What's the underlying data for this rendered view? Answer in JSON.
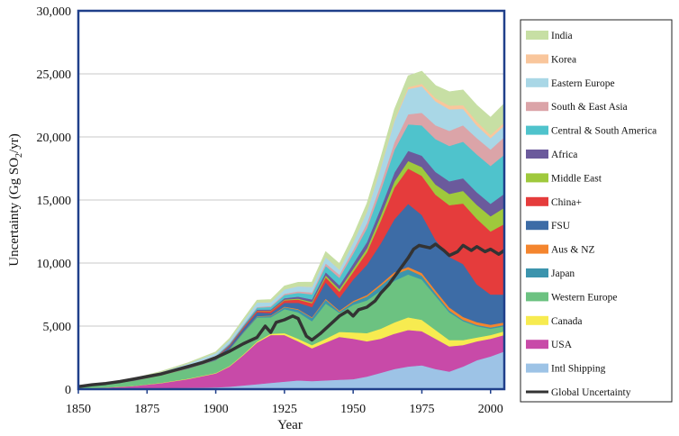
{
  "chart_data": {
    "type": "area",
    "stacked": true,
    "title": "",
    "xlabel": "Year",
    "ylabel": "Uncertainty (Gg SO",
    "ylabel_sub": "2",
    "ylabel_tail": "/yr)",
    "xlim": [
      1850,
      2005
    ],
    "ylim": [
      0,
      30000
    ],
    "xticks": [
      1850,
      1875,
      1900,
      1925,
      1950,
      1975,
      2000
    ],
    "xtick_labels": [
      "1850",
      "1875",
      "1900",
      "1925",
      "1950",
      "1975",
      "2000"
    ],
    "yticks": [
      0,
      5000,
      10000,
      15000,
      20000,
      25000,
      30000
    ],
    "ytick_labels": [
      "0",
      "5,000",
      "10,000",
      "15,000",
      "20,000",
      "25,000",
      "30,000"
    ],
    "grid": "horizontal",
    "legend_position": "right",
    "x": [
      1850,
      1860,
      1870,
      1880,
      1890,
      1900,
      1905,
      1910,
      1915,
      1920,
      1925,
      1930,
      1935,
      1940,
      1945,
      1950,
      1955,
      1960,
      1965,
      1970,
      1975,
      1980,
      1985,
      1990,
      1995,
      2000,
      2005
    ],
    "series": [
      {
        "name": "Intl Shipping",
        "color": "#9dc3e6",
        "values": [
          20,
          30,
          50,
          80,
          110,
          150,
          200,
          300,
          400,
          500,
          600,
          700,
          650,
          700,
          750,
          800,
          1000,
          1300,
          1600,
          1800,
          1900,
          1600,
          1400,
          1800,
          2300,
          2600,
          3000
        ]
      },
      {
        "name": "USA",
        "color": "#c84aa8",
        "values": [
          50,
          100,
          200,
          400,
          700,
          1100,
          1600,
          2400,
          3300,
          3800,
          3700,
          3100,
          2600,
          3000,
          3400,
          3200,
          2800,
          2700,
          2800,
          2900,
          2700,
          2400,
          2000,
          1700,
          1500,
          1400,
          1300
        ]
      },
      {
        "name": "Canada",
        "color": "#f7eb50",
        "values": [
          5,
          10,
          15,
          20,
          30,
          40,
          50,
          60,
          80,
          100,
          150,
          200,
          250,
          300,
          400,
          500,
          650,
          800,
          900,
          1000,
          900,
          700,
          500,
          400,
          300,
          300,
          300
        ]
      },
      {
        "name": "Western Europe",
        "color": "#6cc281",
        "values": [
          150,
          250,
          400,
          600,
          800,
          1000,
          1300,
          1700,
          1900,
          1300,
          1900,
          2100,
          1900,
          2800,
          1500,
          2200,
          2600,
          3000,
          3300,
          3400,
          3200,
          2700,
          2200,
          1500,
          900,
          500,
          400
        ]
      },
      {
        "name": "Japan",
        "color": "#3c94ad",
        "values": [
          0,
          0,
          0,
          5,
          10,
          20,
          30,
          50,
          80,
          100,
          150,
          200,
          250,
          300,
          100,
          200,
          300,
          400,
          500,
          400,
          300,
          200,
          150,
          100,
          100,
          100,
          100
        ]
      },
      {
        "name": "Aus & NZ",
        "color": "#f4852e",
        "values": [
          0,
          0,
          5,
          10,
          15,
          20,
          25,
          30,
          35,
          40,
          50,
          60,
          70,
          80,
          90,
          100,
          120,
          150,
          180,
          200,
          220,
          230,
          240,
          230,
          220,
          210,
          200
        ]
      },
      {
        "name": "FSU",
        "color": "#3d6ca6",
        "values": [
          10,
          20,
          40,
          60,
          100,
          150,
          200,
          250,
          300,
          200,
          300,
          500,
          800,
          1300,
          1000,
          1700,
          2400,
          3200,
          4200,
          5000,
          4600,
          4000,
          4000,
          4200,
          3000,
          2400,
          2200
        ]
      },
      {
        "name": "China+",
        "color": "#e53c3c",
        "values": [
          5,
          10,
          20,
          30,
          40,
          60,
          80,
          100,
          120,
          150,
          200,
          250,
          300,
          400,
          500,
          600,
          1000,
          1800,
          2500,
          2800,
          3100,
          3600,
          4100,
          4800,
          5200,
          5000,
          5600
        ]
      },
      {
        "name": "Middle East",
        "color": "#9fc93c",
        "values": [
          0,
          0,
          0,
          0,
          0,
          5,
          10,
          20,
          30,
          40,
          60,
          80,
          100,
          150,
          200,
          250,
          300,
          400,
          500,
          600,
          700,
          800,
          900,
          1000,
          1100,
          1200,
          1300
        ]
      },
      {
        "name": "Africa",
        "color": "#6b5a9c",
        "values": [
          0,
          0,
          5,
          10,
          20,
          30,
          40,
          50,
          70,
          90,
          110,
          150,
          200,
          250,
          300,
          400,
          500,
          600,
          700,
          800,
          900,
          1000,
          1000,
          1000,
          1000,
          1000,
          1100
        ]
      },
      {
        "name": "Central & South America",
        "color": "#4fc3cc",
        "values": [
          5,
          10,
          20,
          30,
          40,
          60,
          80,
          100,
          150,
          200,
          250,
          300,
          400,
          500,
          600,
          800,
          1100,
          1400,
          1800,
          2100,
          2400,
          2600,
          2800,
          2900,
          3000,
          3000,
          3100
        ]
      },
      {
        "name": "South & East Asia",
        "color": "#dba4a8",
        "values": [
          0,
          5,
          10,
          15,
          20,
          30,
          40,
          50,
          60,
          80,
          100,
          120,
          150,
          200,
          250,
          300,
          400,
          500,
          600,
          800,
          1000,
          1100,
          1200,
          1300,
          1300,
          1300,
          1400
        ]
      },
      {
        "name": "Eastern Europe",
        "color": "#a9d7e6",
        "values": [
          20,
          40,
          60,
          100,
          150,
          200,
          250,
          300,
          350,
          300,
          350,
          400,
          450,
          500,
          400,
          600,
          900,
          1300,
          1700,
          2000,
          2100,
          1900,
          1700,
          1300,
          1000,
          900,
          900
        ]
      },
      {
        "name": "Korea",
        "color": "#f9c69c",
        "values": [
          0,
          0,
          0,
          0,
          0,
          0,
          0,
          0,
          5,
          10,
          15,
          20,
          25,
          30,
          20,
          30,
          50,
          80,
          100,
          150,
          200,
          250,
          300,
          300,
          300,
          250,
          250
        ]
      },
      {
        "name": "India",
        "color": "#c7dfa4",
        "values": [
          10,
          20,
          30,
          50,
          70,
          100,
          120,
          150,
          180,
          200,
          250,
          300,
          350,
          400,
          450,
          500,
          600,
          700,
          800,
          900,
          1000,
          1000,
          1100,
          1200,
          1300,
          1400,
          1500
        ]
      }
    ],
    "line": {
      "name": "Global Uncertainty",
      "color": "#333333",
      "x": [
        1850,
        1855,
        1860,
        1865,
        1870,
        1875,
        1880,
        1885,
        1890,
        1895,
        1900,
        1905,
        1910,
        1915,
        1918,
        1920,
        1922,
        1925,
        1928,
        1930,
        1933,
        1935,
        1938,
        1940,
        1943,
        1945,
        1948,
        1950,
        1952,
        1955,
        1958,
        1960,
        1963,
        1965,
        1968,
        1970,
        1972,
        1974,
        1976,
        1978,
        1980,
        1983,
        1985,
        1988,
        1990,
        1993,
        1995,
        1998,
        2000,
        2003,
        2005
      ],
      "values": [
        200,
        350,
        450,
        600,
        800,
        1000,
        1200,
        1500,
        1800,
        2100,
        2500,
        3000,
        3600,
        4100,
        5000,
        4500,
        5300,
        5500,
        5800,
        5600,
        4200,
        3900,
        4400,
        4800,
        5400,
        5800,
        6200,
        5800,
        6300,
        6500,
        7000,
        7600,
        8300,
        8900,
        9800,
        10400,
        11100,
        11400,
        11300,
        11200,
        11500,
        11000,
        10600,
        10900,
        11400,
        11000,
        11300,
        10900,
        11100,
        10700,
        11000
      ]
    }
  }
}
